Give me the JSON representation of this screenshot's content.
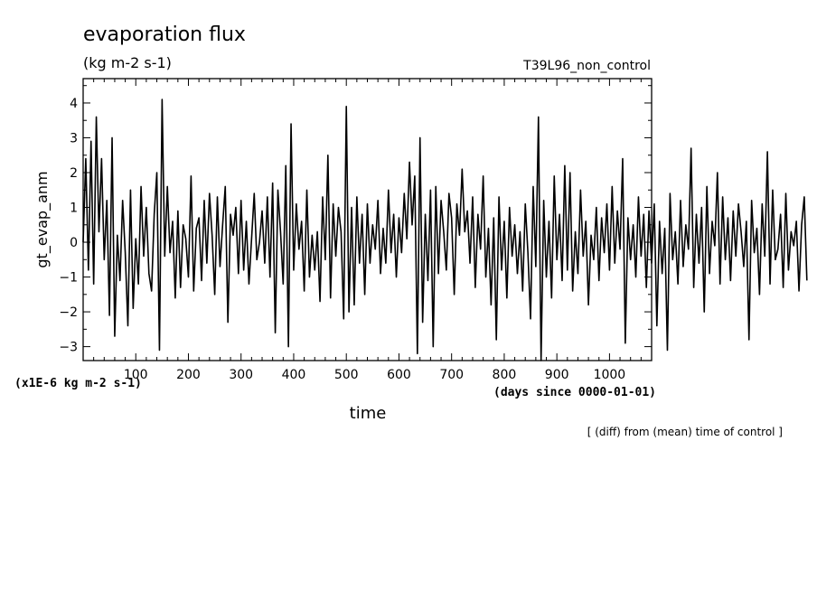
{
  "chart_data": {
    "type": "line",
    "title": "evaporation flux",
    "subtitle": "(kg m-2 s-1)",
    "run_label": "T39L96_non_control",
    "xlabel": "time",
    "x_units": "(days since 0000-01-01)",
    "ylabel": "gt_evap_anm",
    "y_units": "(x1E-6 kg m-2 s-1)",
    "note": "[ (diff) from (mean) time of control ]",
    "xlim": [
      0,
      1080
    ],
    "ylim": [
      -3.4,
      4.7
    ],
    "x_ticks": [
      100,
      200,
      300,
      400,
      500,
      600,
      700,
      800,
      900,
      1000
    ],
    "x_tick_labels": [
      "100",
      "200",
      "300",
      "400",
      "500",
      "600",
      "700",
      "800",
      "900",
      "1000"
    ],
    "y_ticks": [
      -3,
      -2,
      -1,
      0,
      1,
      2,
      3,
      4
    ],
    "y_tick_labels": [
      "−3",
      "−2",
      "−1",
      "0",
      "1",
      "2",
      "3",
      "4"
    ],
    "grid": false,
    "series": [
      {
        "name": "",
        "color": "#000000",
        "x_step": 5,
        "x_start": 0,
        "values": [
          0.0,
          2.4,
          -0.8,
          2.9,
          -1.2,
          3.6,
          0.3,
          2.4,
          -0.5,
          1.2,
          -2.1,
          3.0,
          -2.7,
          0.2,
          -1.1,
          1.2,
          -0.3,
          -2.4,
          1.5,
          -1.9,
          0.1,
          -1.2,
          1.6,
          -0.4,
          1.0,
          -0.9,
          -1.4,
          0.8,
          2.0,
          -3.1,
          4.1,
          -0.4,
          1.6,
          -0.3,
          0.6,
          -1.6,
          0.9,
          -1.3,
          0.5,
          0.1,
          -1.0,
          1.9,
          -1.4,
          0.4,
          0.7,
          -1.1,
          1.2,
          -0.6,
          1.4,
          0.2,
          -1.5,
          1.3,
          -0.7,
          0.5,
          1.6,
          -2.3,
          0.8,
          0.2,
          1.0,
          -0.9,
          1.2,
          -0.8,
          0.6,
          -1.2,
          0.1,
          1.4,
          -0.5,
          0.0,
          0.9,
          -0.6,
          1.3,
          -1.0,
          1.7,
          -2.6,
          1.5,
          0.3,
          -1.2,
          2.2,
          -3.0,
          3.4,
          -0.8,
          1.1,
          -0.2,
          0.6,
          -1.4,
          1.5,
          -1.0,
          0.2,
          -0.8,
          0.3,
          -1.7,
          1.3,
          -0.5,
          2.5,
          -1.6,
          1.1,
          -0.4,
          1.0,
          0.3,
          -2.2,
          3.9,
          -2.0,
          1.0,
          -1.8,
          1.3,
          -0.6,
          0.8,
          -1.5,
          1.1,
          -0.6,
          0.5,
          -0.2,
          1.2,
          -0.9,
          0.4,
          -0.6,
          1.5,
          -0.3,
          0.8,
          -1.0,
          0.7,
          -0.3,
          1.4,
          0.1,
          2.3,
          0.5,
          1.9,
          -3.2,
          3.0,
          -2.3,
          0.8,
          -1.1,
          1.5,
          -3.0,
          1.6,
          -0.9,
          1.2,
          0.3,
          -0.8,
          1.4,
          0.7,
          -1.5,
          1.1,
          0.2,
          2.1,
          0.3,
          0.9,
          -0.6,
          1.3,
          -1.3,
          0.8,
          -0.2,
          1.9,
          -1.0,
          0.4,
          -1.8,
          0.7,
          -2.8,
          1.3,
          -0.8,
          0.6,
          -1.6,
          1.0,
          -0.4,
          0.5,
          -0.9,
          0.3,
          -1.4,
          1.1,
          -0.3,
          -2.2,
          1.6,
          -0.7,
          3.6,
          -3.4,
          1.2,
          -1.0,
          0.6,
          -1.6,
          1.9,
          -0.5,
          0.8,
          -1.1,
          2.2,
          -0.8,
          2.0,
          -1.4,
          0.3,
          -0.9,
          1.5,
          -0.4,
          0.6,
          -1.8,
          0.2,
          -0.5,
          1.0,
          -1.1,
          0.7,
          -0.3,
          1.1,
          -0.8,
          1.6,
          -0.6,
          0.9,
          -0.2,
          2.4,
          -2.9,
          0.7,
          -0.5,
          0.5,
          -1.0,
          1.3,
          -0.4,
          0.8,
          -1.3,
          0.9,
          -0.6,
          1.1,
          -2.4,
          0.6,
          -0.9,
          0.4,
          -3.1,
          1.4,
          -0.5,
          0.3,
          -1.2,
          1.2,
          -0.7,
          0.5,
          -0.2,
          2.7,
          -1.3,
          0.8,
          -0.6,
          1.0,
          -2.0,
          1.6,
          -0.9,
          0.6,
          -0.1,
          2.0,
          -1.2,
          1.3,
          -0.5,
          0.7,
          -1.1,
          0.9,
          -0.4,
          1.1,
          0.3,
          -0.7,
          0.6,
          -2.8,
          1.2,
          -0.3,
          0.4,
          -1.5,
          1.1,
          -0.4,
          2.6,
          -1.2,
          1.5,
          -0.5,
          -0.2,
          0.8,
          -1.3,
          1.4,
          -0.8,
          0.3,
          -0.1,
          0.6,
          -1.4,
          0.5,
          1.3,
          -1.1
        ]
      }
    ]
  }
}
